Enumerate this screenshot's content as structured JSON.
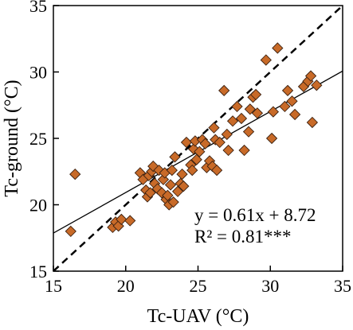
{
  "chart_data": {
    "type": "scatter",
    "title": "",
    "xlabel": "Tc-UAV (°C)",
    "ylabel": "Tc-ground (°C)",
    "xlim": [
      15,
      35
    ],
    "ylim": [
      15,
      35
    ],
    "xticks": [
      "15",
      "20",
      "25",
      "30",
      "35"
    ],
    "yticks": [
      "15",
      "20",
      "25",
      "30",
      "35"
    ],
    "grid": false,
    "marker": "diamond",
    "marker_color": "#c86a28",
    "marker_edge_color": "#3a2010",
    "series": [
      {
        "points": [
          [
            16.2,
            18.0
          ],
          [
            16.5,
            22.3
          ],
          [
            19.1,
            18.3
          ],
          [
            19.3,
            18.7
          ],
          [
            19.5,
            18.4
          ],
          [
            19.7,
            18.9
          ],
          [
            20.3,
            18.8
          ],
          [
            21.0,
            22.4
          ],
          [
            21.2,
            21.9
          ],
          [
            21.4,
            21.1
          ],
          [
            21.5,
            20.6
          ],
          [
            21.6,
            22.2
          ],
          [
            21.7,
            20.9
          ],
          [
            21.8,
            22.5
          ],
          [
            21.9,
            22.9
          ],
          [
            22.0,
            21.6
          ],
          [
            22.2,
            21.2
          ],
          [
            22.3,
            22.6
          ],
          [
            22.5,
            20.9
          ],
          [
            22.6,
            21.9
          ],
          [
            22.7,
            22.4
          ],
          [
            22.8,
            20.4
          ],
          [
            22.9,
            20.7
          ],
          [
            23.0,
            20.0
          ],
          [
            23.1,
            21.5
          ],
          [
            23.2,
            22.6
          ],
          [
            23.3,
            20.2
          ],
          [
            23.4,
            23.6
          ],
          [
            23.6,
            21.0
          ],
          [
            23.8,
            21.6
          ],
          [
            23.9,
            22.3
          ],
          [
            24.0,
            21.4
          ],
          [
            24.2,
            24.7
          ],
          [
            24.5,
            23.0
          ],
          [
            24.6,
            22.6
          ],
          [
            24.7,
            24.2
          ],
          [
            24.8,
            24.8
          ],
          [
            24.9,
            23.4
          ],
          [
            25.1,
            24.0
          ],
          [
            25.3,
            24.9
          ],
          [
            25.5,
            24.6
          ],
          [
            25.6,
            22.8
          ],
          [
            25.8,
            23.3
          ],
          [
            26.0,
            22.9
          ],
          [
            26.1,
            25.8
          ],
          [
            26.2,
            24.9
          ],
          [
            26.3,
            22.6
          ],
          [
            26.5,
            24.7
          ],
          [
            26.8,
            28.6
          ],
          [
            27.0,
            25.3
          ],
          [
            27.1,
            24.1
          ],
          [
            27.4,
            26.3
          ],
          [
            27.7,
            27.4
          ],
          [
            28.0,
            26.5
          ],
          [
            28.2,
            24.1
          ],
          [
            28.5,
            25.5
          ],
          [
            28.6,
            27.2
          ],
          [
            28.8,
            28.1
          ],
          [
            29.0,
            28.3
          ],
          [
            29.1,
            26.9
          ],
          [
            29.7,
            30.9
          ],
          [
            30.1,
            25.0
          ],
          [
            30.2,
            27.0
          ],
          [
            30.5,
            31.8
          ],
          [
            31.0,
            27.4
          ],
          [
            31.2,
            28.6
          ],
          [
            31.5,
            27.8
          ],
          [
            31.7,
            26.8
          ],
          [
            32.3,
            28.9
          ],
          [
            32.6,
            29.3
          ],
          [
            32.8,
            29.7
          ],
          [
            32.9,
            26.2
          ],
          [
            33.2,
            29.0
          ]
        ]
      }
    ],
    "reference_lines": [
      {
        "kind": "regression",
        "slope": 0.61,
        "intercept": 8.72,
        "style": "solid"
      },
      {
        "kind": "1:1",
        "slope": 1,
        "intercept": 0,
        "style": "dashed"
      }
    ],
    "annotations": [
      "y = 0.61x + 8.72",
      "R² = 0.81***"
    ]
  }
}
